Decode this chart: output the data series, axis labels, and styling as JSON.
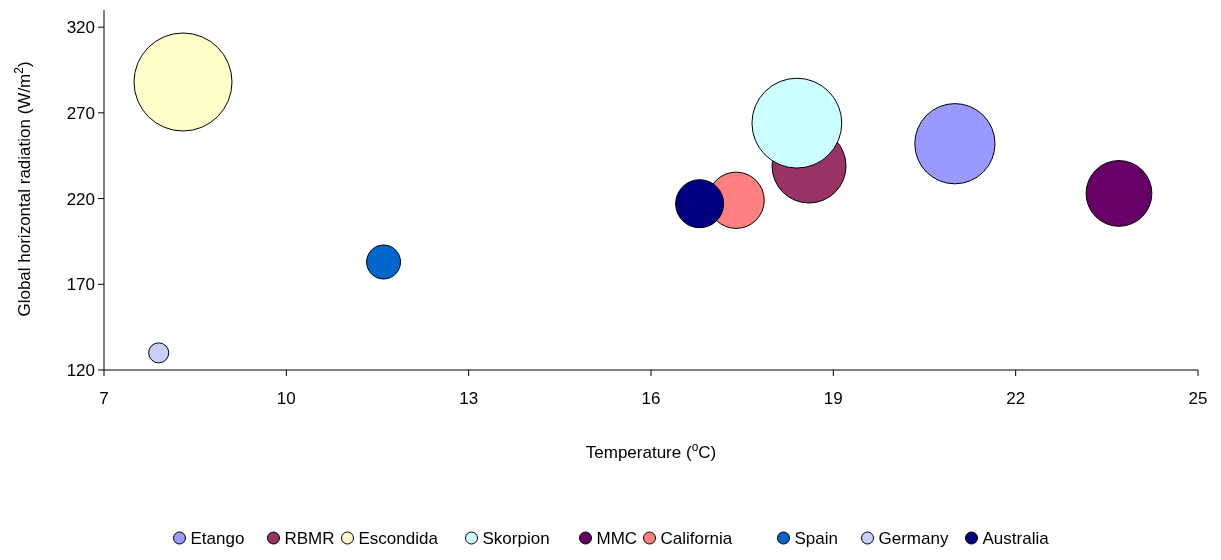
{
  "chart_data": {
    "type": "bubble",
    "xlabel": "Temperature ($^{o}$C)",
    "ylabel": "Global horizontal radiation (W/m$^{2}$)",
    "xlim": [
      7,
      25
    ],
    "xticks": [
      7,
      10,
      13,
      16,
      19,
      22,
      25
    ],
    "ylim": [
      120,
      330
    ],
    "yticks": [
      120,
      170,
      220,
      270,
      320
    ],
    "grid": false,
    "legend": "bottom",
    "marker": "circle",
    "series": [
      {
        "name": "Etango",
        "color": "#9999ff",
        "x": [
          21.0
        ],
        "values": [
          252
        ],
        "sizes": [
          0.67
        ]
      },
      {
        "name": "RBMR",
        "color": "#993366",
        "x": [
          18.6
        ],
        "values": [
          239
        ],
        "sizes": [
          0.57
        ]
      },
      {
        "name": "Escondida",
        "color": "#ffffcc",
        "x": [
          8.3
        ],
        "values": [
          288
        ],
        "sizes": [
          1
        ]
      },
      {
        "name": "Skorpion",
        "color": "#ccffff",
        "x": [
          18.4
        ],
        "values": [
          264
        ],
        "sizes": [
          0.84
        ]
      },
      {
        "name": "MMC",
        "color": "#660066",
        "x": [
          23.7
        ],
        "values": [
          223
        ],
        "sizes": [
          0.45
        ]
      },
      {
        "name": "California",
        "color": "#ff8080",
        "x": [
          17.4
        ],
        "values": [
          219
        ],
        "sizes": [
          0.33
        ]
      },
      {
        "name": "Spain",
        "color": "#0066cc",
        "x": [
          11.6
        ],
        "values": [
          183
        ],
        "sizes": [
          0.12
        ]
      },
      {
        "name": "Germany",
        "color": "#ccccff",
        "x": [
          7.9
        ],
        "values": [
          130
        ],
        "sizes": [
          0.042
        ]
      },
      {
        "name": "Australia",
        "color": "#000080",
        "x": [
          16.8
        ],
        "values": [
          217
        ],
        "sizes": [
          0.24
        ]
      }
    ]
  }
}
